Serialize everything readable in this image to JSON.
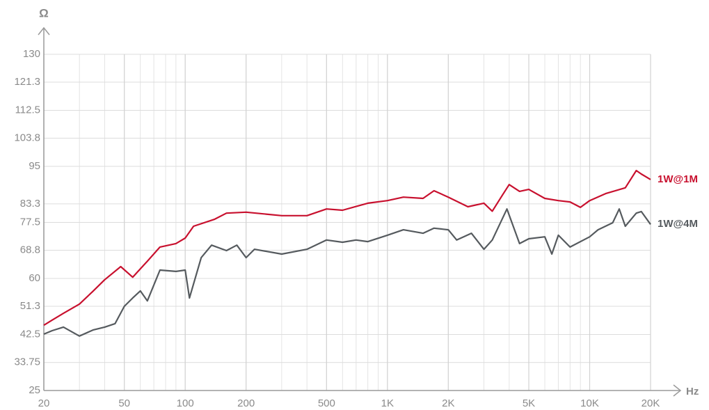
{
  "chart_data": {
    "type": "line",
    "xscale": "log",
    "grid": true,
    "ylabel": "Ω",
    "xlabel": "Hz",
    "xlim": [
      20,
      20000
    ],
    "xticks": [
      20,
      50,
      100,
      200,
      500,
      {
        "value": 1000,
        "label": "1K"
      },
      {
        "value": 2000,
        "label": "2K"
      },
      {
        "value": 5000,
        "label": "5K"
      },
      {
        "value": 10000,
        "label": "10K"
      },
      {
        "value": 20000,
        "label": "20K"
      }
    ],
    "ylim": [
      25,
      130
    ],
    "yticks": [
      25,
      33.75,
      42.5,
      51.3,
      60,
      68.8,
      77.5,
      83.3,
      95,
      103.8,
      112.5,
      121.3,
      130
    ],
    "series": [
      {
        "name": "1W@1M",
        "color": "#c8102e",
        "x": [
          20,
          22,
          25,
          30,
          35,
          40,
          48,
          55,
          65,
          75,
          90,
          100,
          110,
          140,
          160,
          200,
          300,
          400,
          500,
          600,
          800,
          1000,
          1200,
          1500,
          1700,
          2000,
          2500,
          3000,
          3300,
          3700,
          4000,
          4500,
          5000,
          6000,
          7000,
          8000,
          9000,
          10000,
          12000,
          15000,
          17000,
          18000,
          20000
        ],
        "values": [
          45.4,
          47,
          49.1,
          52,
          56,
          59.6,
          63.7,
          60.4,
          65.4,
          69.8,
          70.9,
          72.6,
          76.3,
          78.5,
          80.4,
          80.7,
          79.6,
          79.6,
          81.7,
          81.3,
          83.5,
          84.3,
          85.4,
          85,
          87.4,
          85.4,
          82.4,
          83.5,
          81,
          86,
          89.3,
          87.2,
          87.8,
          85,
          84.3,
          83.9,
          82.2,
          84.3,
          86.5,
          88.3,
          93.7,
          92.6,
          90.9
        ]
      },
      {
        "name": "1W@4M",
        "color": "#555a5e",
        "x": [
          20,
          22,
          25,
          30,
          35,
          40,
          45,
          50,
          55,
          60,
          65,
          75,
          90,
          100,
          105,
          120,
          135,
          160,
          180,
          200,
          220,
          300,
          400,
          500,
          600,
          700,
          800,
          1000,
          1200,
          1500,
          1700,
          2000,
          2200,
          2600,
          3000,
          3300,
          3900,
          4500,
          5000,
          6000,
          6500,
          7000,
          8000,
          10000,
          11000,
          13000,
          14000,
          15000,
          17000,
          18000,
          20000
        ],
        "values": [
          42.6,
          43.7,
          44.8,
          42,
          43.9,
          44.8,
          45.9,
          51.3,
          53.9,
          56.1,
          53,
          62.6,
          62.2,
          62.6,
          53.9,
          66.5,
          70.4,
          68.7,
          70.4,
          66.5,
          69.1,
          67.6,
          69.1,
          72,
          71.3,
          72,
          71.5,
          73.5,
          75.2,
          74.1,
          75.7,
          75.2,
          72,
          74.1,
          69.1,
          72,
          81.7,
          70.9,
          72.4,
          73,
          67.6,
          73.5,
          69.8,
          73,
          75.2,
          77.4,
          81.7,
          76.3,
          80.4,
          80.9,
          76.9
        ]
      }
    ]
  }
}
